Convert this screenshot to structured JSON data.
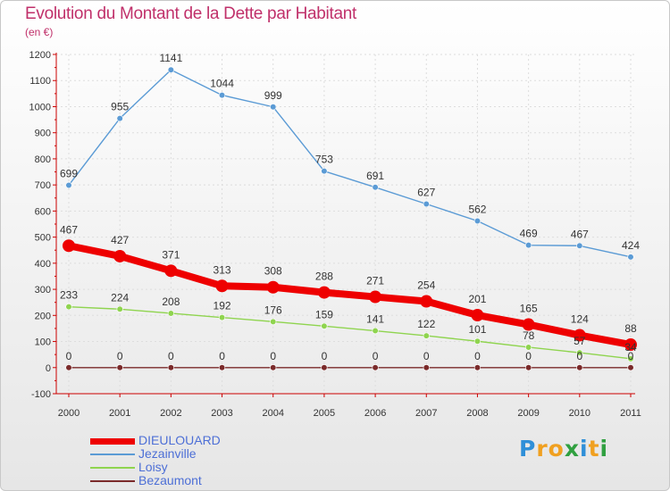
{
  "title": "Evolution du Montant de la Dette par Habitant",
  "subtitle": "(en €)",
  "logo": {
    "letters": [
      "P",
      "r",
      "o",
      "x",
      "i",
      "t",
      "i"
    ],
    "colors": [
      "#2f8fd8",
      "#f0a020",
      "#f0a020",
      "#30a040",
      "#2f8fd8",
      "#f0a020",
      "#30a040"
    ]
  },
  "chart_data": {
    "type": "line",
    "x": [
      "2000",
      "2001",
      "2002",
      "2003",
      "2004",
      "2005",
      "2006",
      "2007",
      "2008",
      "2009",
      "2010",
      "2011"
    ],
    "ylim": [
      -100,
      1200
    ],
    "yticks": [
      "-100",
      "0",
      "100",
      "200",
      "300",
      "400",
      "500",
      "600",
      "700",
      "800",
      "900",
      "1000",
      "1100",
      "1200"
    ],
    "legend_position": "bottom-left",
    "series": [
      {
        "name": "DIEULOUARD",
        "color": "#ee0000",
        "values": [
          467,
          427,
          371,
          313,
          308,
          288,
          271,
          254,
          201,
          165,
          124,
          88
        ],
        "labels": [
          "467",
          "427",
          "371",
          "313",
          "308",
          "288",
          "271",
          "254",
          "201",
          "165",
          "124",
          "88"
        ]
      },
      {
        "name": "Jezainville",
        "color": "#5b9bd5",
        "values": [
          699,
          955,
          1141,
          1044,
          999,
          753,
          691,
          627,
          562,
          469,
          467,
          424
        ],
        "labels": [
          "699",
          "955",
          "1141",
          "1044",
          "999",
          "753",
          "691",
          "627",
          "562",
          "469",
          "467",
          "424"
        ]
      },
      {
        "name": "Loisy",
        "color": "#8fd44f",
        "values": [
          233,
          224,
          208,
          192,
          176,
          159,
          141,
          122,
          101,
          78,
          57,
          34
        ],
        "labels": [
          "233",
          "224",
          "208",
          "192",
          "176",
          "159",
          "141",
          "122",
          "101",
          "78",
          "57",
          "34"
        ]
      },
      {
        "name": "Bezaumont",
        "color": "#7a2a2a",
        "values": [
          0,
          0,
          0,
          0,
          0,
          0,
          0,
          0,
          0,
          0,
          0,
          0
        ],
        "labels": [
          "0",
          "0",
          "0",
          "0",
          "0",
          "0",
          "0",
          "0",
          "0",
          "0",
          "0",
          "0"
        ]
      }
    ]
  }
}
